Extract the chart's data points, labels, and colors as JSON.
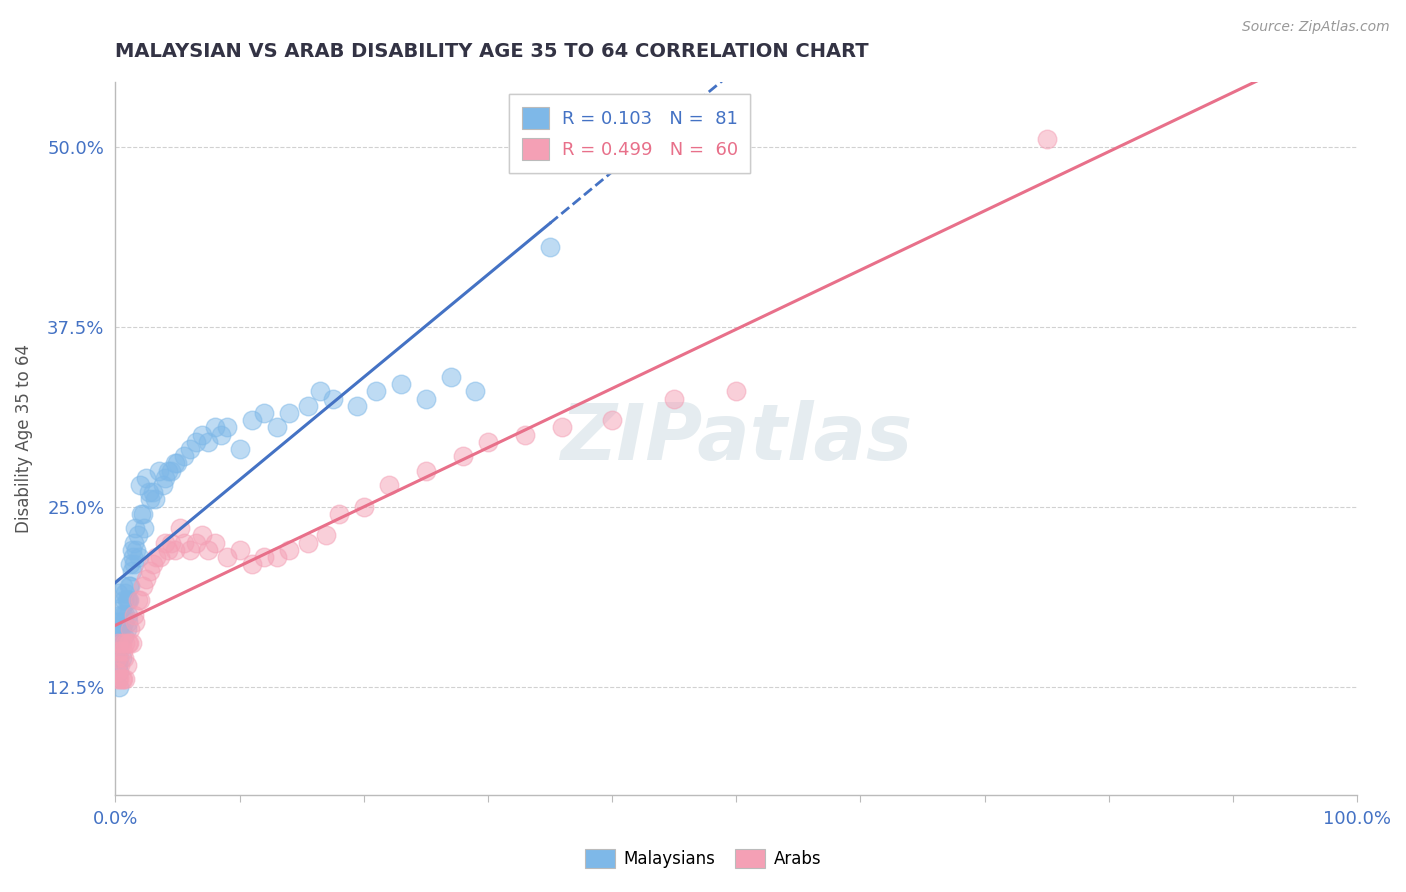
{
  "title": "MALAYSIAN VS ARAB DISABILITY AGE 35 TO 64 CORRELATION CHART",
  "source_text": "Source: ZipAtlas.com",
  "ylabel": "Disability Age 35 to 64",
  "yticks": [
    0.125,
    0.25,
    0.375,
    0.5
  ],
  "ytick_labels": [
    "12.5%",
    "25.0%",
    "37.5%",
    "50.0%"
  ],
  "xlim": [
    0.0,
    1.0
  ],
  "ylim": [
    0.05,
    0.545
  ],
  "color_malaysian": "#7EB8E8",
  "color_arab": "#F4A0B5",
  "color_line_malaysian": "#4472C4",
  "color_line_arab": "#E8708A",
  "watermark": "ZIPatlas",
  "watermark_color": "#C5D8E8",
  "legend_r1": "R = 0.103   N =  81",
  "legend_r2": "R = 0.499   N =  60",
  "grid_color": "#CCCCCC",
  "background_color": "#FFFFFF",
  "tick_color": "#4472C4",
  "malaysian_x": [
    0.001,
    0.001,
    0.001,
    0.002,
    0.002,
    0.002,
    0.002,
    0.003,
    0.003,
    0.003,
    0.003,
    0.004,
    0.004,
    0.004,
    0.005,
    0.005,
    0.005,
    0.006,
    0.006,
    0.007,
    0.007,
    0.007,
    0.008,
    0.008,
    0.009,
    0.009,
    0.01,
    0.01,
    0.01,
    0.011,
    0.011,
    0.012,
    0.012,
    0.013,
    0.013,
    0.014,
    0.015,
    0.015,
    0.016,
    0.017,
    0.018,
    0.019,
    0.02,
    0.021,
    0.022,
    0.023,
    0.025,
    0.027,
    0.028,
    0.03,
    0.032,
    0.035,
    0.038,
    0.04,
    0.042,
    0.045,
    0.048,
    0.05,
    0.055,
    0.06,
    0.065,
    0.07,
    0.075,
    0.08,
    0.085,
    0.09,
    0.1,
    0.11,
    0.12,
    0.13,
    0.14,
    0.155,
    0.165,
    0.175,
    0.195,
    0.21,
    0.23,
    0.25,
    0.27,
    0.29,
    0.35
  ],
  "malaysian_y": [
    0.165,
    0.155,
    0.145,
    0.19,
    0.17,
    0.16,
    0.14,
    0.155,
    0.145,
    0.135,
    0.125,
    0.175,
    0.165,
    0.155,
    0.18,
    0.165,
    0.145,
    0.195,
    0.175,
    0.185,
    0.17,
    0.16,
    0.19,
    0.175,
    0.185,
    0.165,
    0.175,
    0.185,
    0.17,
    0.195,
    0.185,
    0.21,
    0.195,
    0.22,
    0.205,
    0.215,
    0.225,
    0.21,
    0.235,
    0.22,
    0.23,
    0.215,
    0.265,
    0.245,
    0.245,
    0.235,
    0.27,
    0.26,
    0.255,
    0.26,
    0.255,
    0.275,
    0.265,
    0.27,
    0.275,
    0.275,
    0.28,
    0.28,
    0.285,
    0.29,
    0.295,
    0.3,
    0.295,
    0.305,
    0.3,
    0.305,
    0.29,
    0.31,
    0.315,
    0.305,
    0.315,
    0.32,
    0.33,
    0.325,
    0.32,
    0.33,
    0.335,
    0.325,
    0.34,
    0.33,
    0.43
  ],
  "arab_x": [
    0.001,
    0.001,
    0.002,
    0.002,
    0.003,
    0.003,
    0.004,
    0.005,
    0.005,
    0.006,
    0.006,
    0.007,
    0.008,
    0.008,
    0.009,
    0.01,
    0.011,
    0.012,
    0.013,
    0.015,
    0.016,
    0.018,
    0.02,
    0.022,
    0.025,
    0.028,
    0.03,
    0.033,
    0.036,
    0.04,
    0.042,
    0.045,
    0.048,
    0.052,
    0.055,
    0.06,
    0.065,
    0.07,
    0.075,
    0.08,
    0.09,
    0.1,
    0.11,
    0.12,
    0.13,
    0.14,
    0.155,
    0.17,
    0.18,
    0.2,
    0.22,
    0.25,
    0.28,
    0.3,
    0.33,
    0.36,
    0.4,
    0.45,
    0.5,
    0.75
  ],
  "arab_y": [
    0.145,
    0.135,
    0.155,
    0.13,
    0.15,
    0.13,
    0.14,
    0.155,
    0.13,
    0.15,
    0.13,
    0.145,
    0.155,
    0.13,
    0.14,
    0.155,
    0.155,
    0.165,
    0.155,
    0.175,
    0.17,
    0.185,
    0.185,
    0.195,
    0.2,
    0.205,
    0.21,
    0.215,
    0.215,
    0.225,
    0.22,
    0.225,
    0.22,
    0.235,
    0.225,
    0.22,
    0.225,
    0.23,
    0.22,
    0.225,
    0.215,
    0.22,
    0.21,
    0.215,
    0.215,
    0.22,
    0.225,
    0.23,
    0.245,
    0.25,
    0.265,
    0.275,
    0.285,
    0.295,
    0.3,
    0.305,
    0.31,
    0.325,
    0.33,
    0.505
  ]
}
